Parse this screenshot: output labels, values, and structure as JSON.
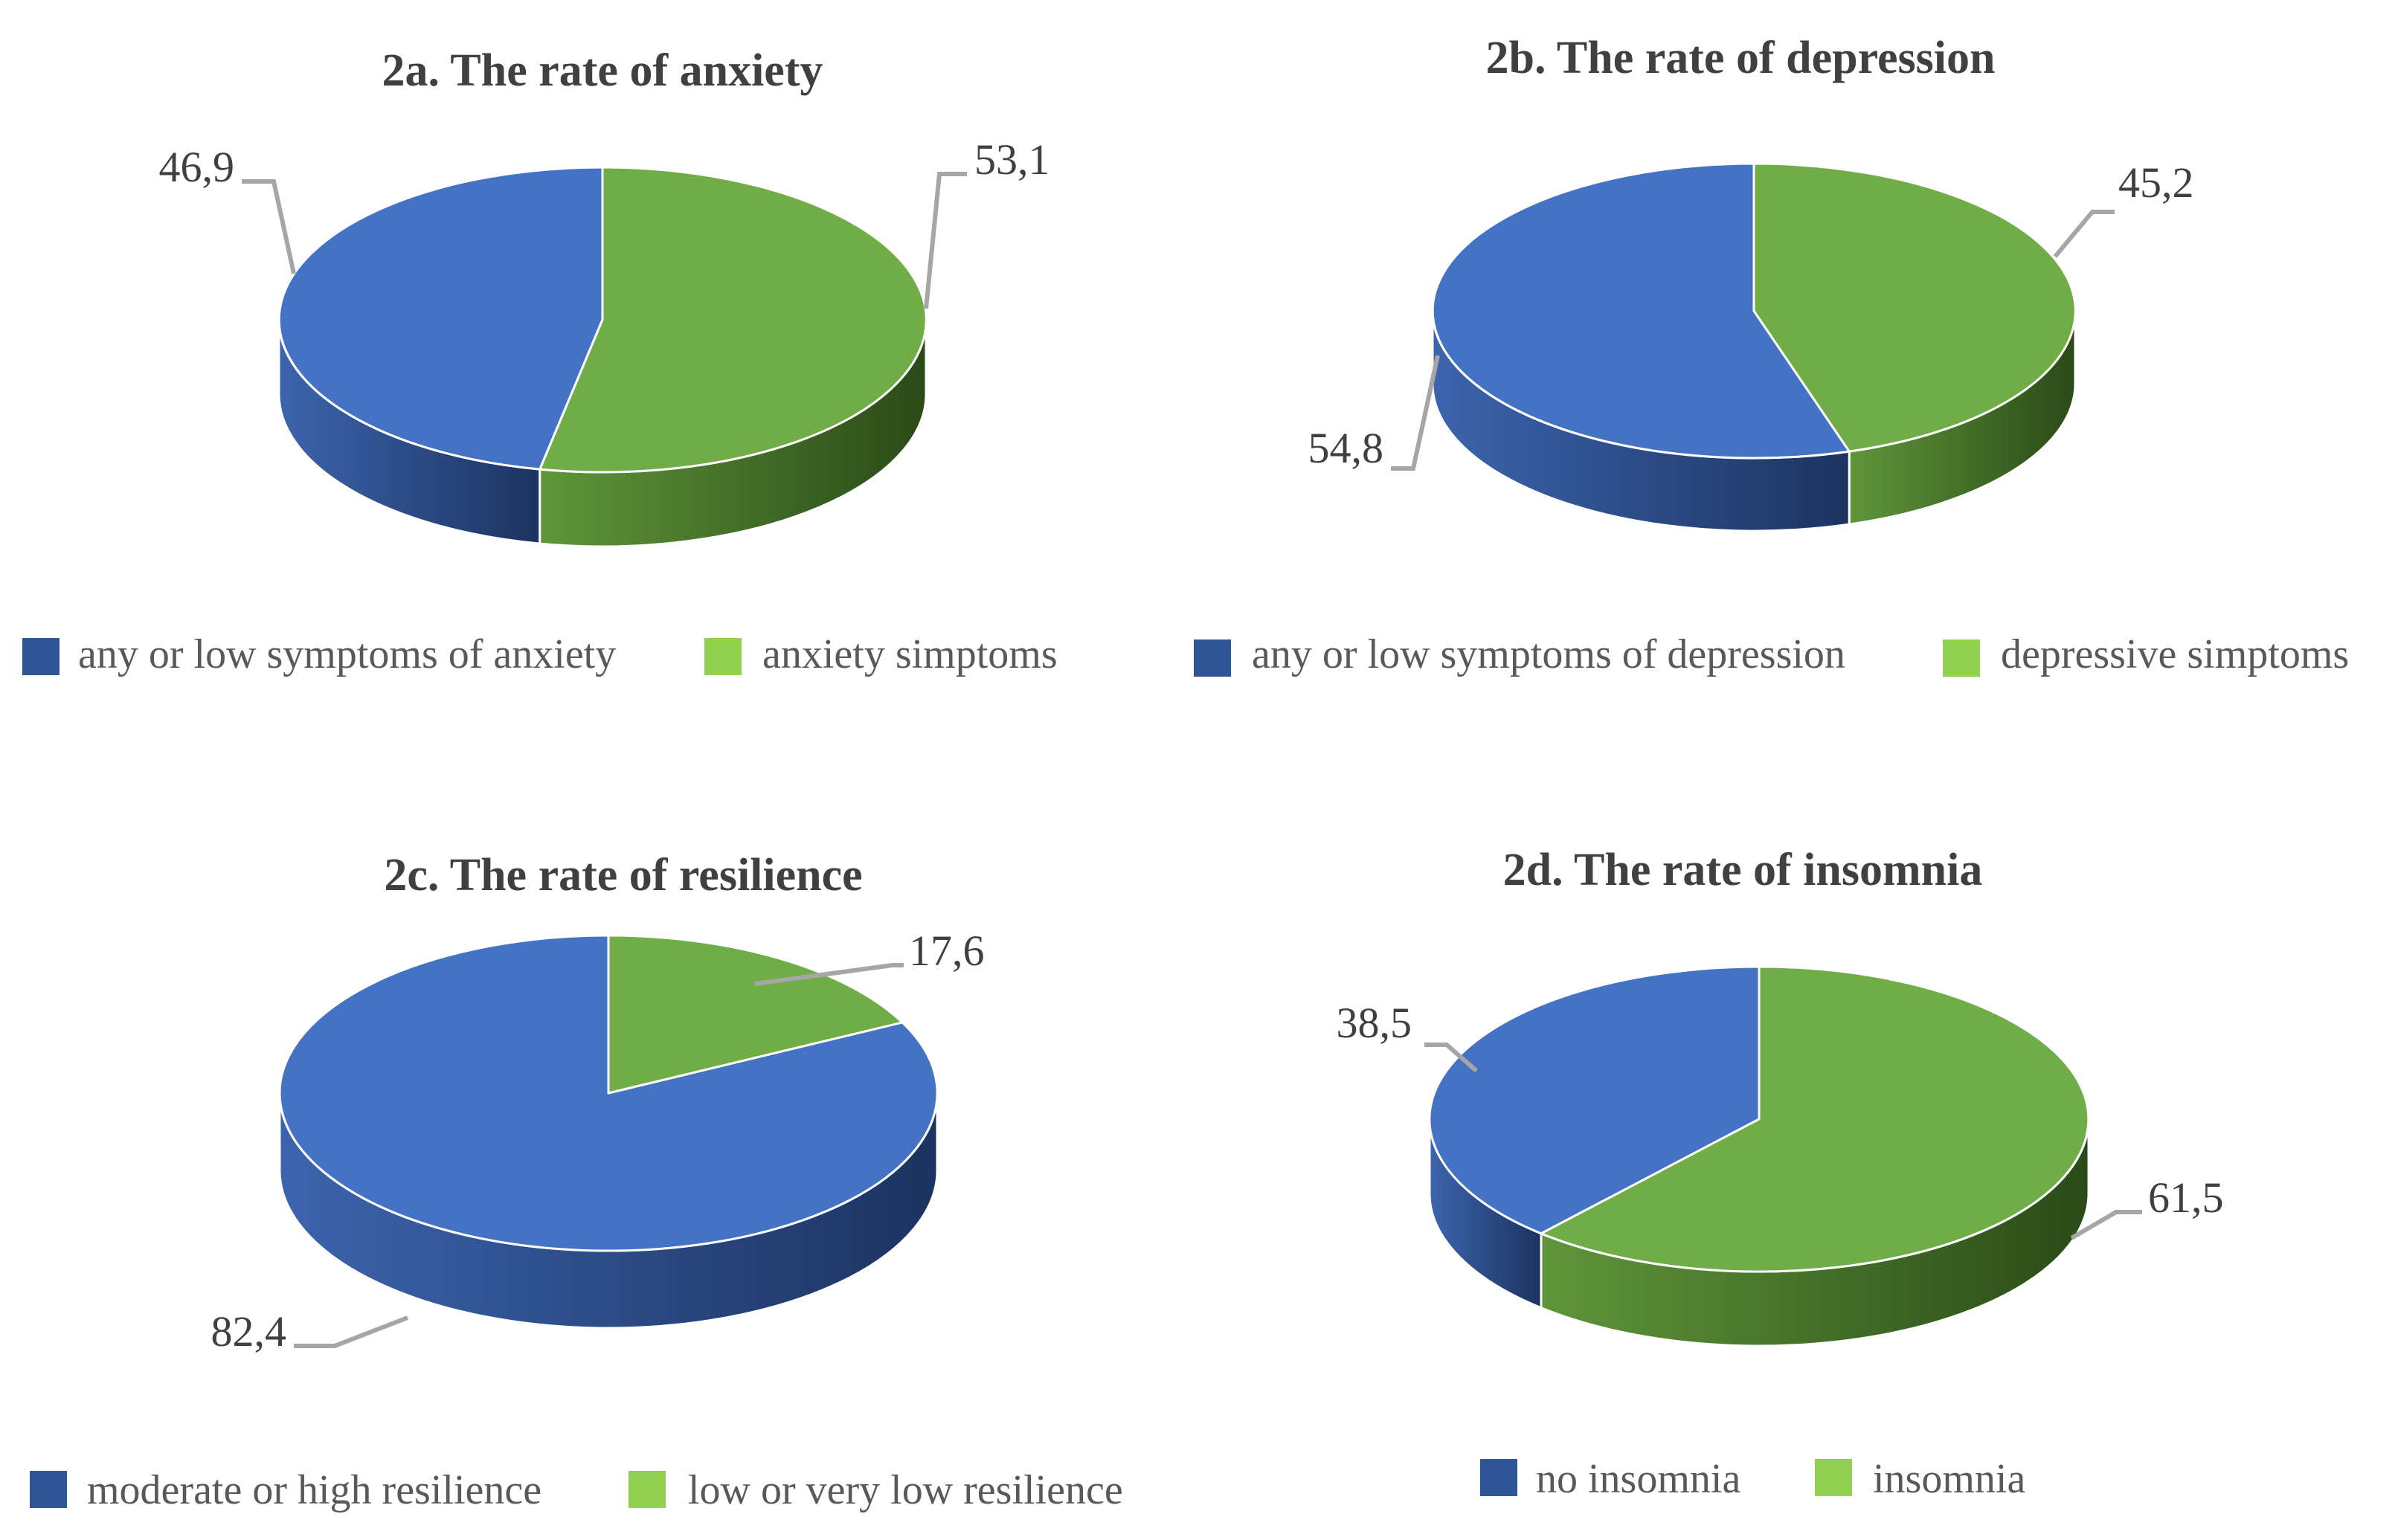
{
  "colors": {
    "blue": "#4472c4",
    "blue_dark": "#2c4f8e",
    "green": "#70ad47",
    "green_dark": "#3a6422",
    "legend_blue": "#2f5597",
    "legend_green": "#92d050"
  },
  "chart_data": [
    {
      "type": "pie",
      "title": "2a. The rate of anxiety",
      "slices": [
        {
          "label": "any or low symptoms of anxiety",
          "value": 46.9,
          "display": "46,9",
          "color": "blue"
        },
        {
          "label": "anxiety simptoms",
          "value": 53.1,
          "display": "53,1",
          "color": "green"
        }
      ]
    },
    {
      "type": "pie",
      "title": "2b. The rate of depression",
      "slices": [
        {
          "label": "any or low symptoms of depression",
          "value": 54.8,
          "display": "54,8",
          "color": "blue"
        },
        {
          "label": "depressive simptoms",
          "value": 45.2,
          "display": "45,2",
          "color": "green"
        }
      ]
    },
    {
      "type": "pie",
      "title": "2c. The rate of resilience",
      "slices": [
        {
          "label": "moderate or high resilience",
          "value": 82.4,
          "display": "82,4",
          "color": "blue"
        },
        {
          "label": "low or very low resilience",
          "value": 17.6,
          "display": "17,6",
          "color": "green"
        }
      ]
    },
    {
      "type": "pie",
      "title": "2d. The rate of insomnia",
      "slices": [
        {
          "label": "no insomnia",
          "value": 38.5,
          "display": "38,5",
          "color": "blue"
        },
        {
          "label": "insomnia",
          "value": 61.5,
          "display": "61,5",
          "color": "green"
        }
      ]
    }
  ]
}
